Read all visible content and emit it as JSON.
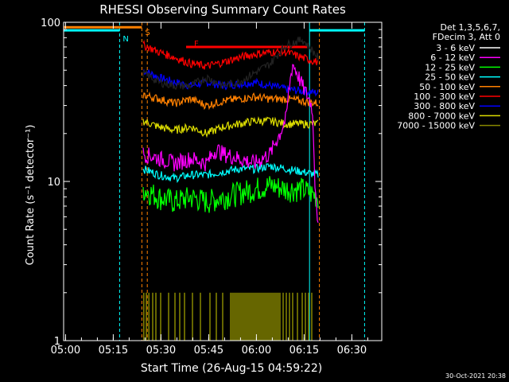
{
  "chart_data": {
    "type": "line",
    "title": "RHESSI Observing Summary Count Rates",
    "xlabel": "Start Time (26-Aug-15 04:59:22)",
    "ylabel": "Count Rate (s⁻¹ detector⁻¹)",
    "y_scale": "log",
    "ylim": [
      1,
      100
    ],
    "xlim_minutes": [
      0,
      100
    ],
    "x_tick_labels": [
      "05:00",
      "05:15",
      "05:30",
      "05:45",
      "06:00",
      "06:15",
      "06:30"
    ],
    "y_tick_labels": [
      "1",
      "10",
      "100"
    ],
    "legend_header": [
      "Det 1,3,5,6,7,",
      "FDecim 3, Att 0"
    ],
    "legend_position": "right",
    "footer_date": "30-Oct-2021 20:38",
    "series": [
      {
        "name": "3 - 6 keV",
        "color": "#000000",
        "x": [
          25,
          30,
          35,
          40,
          45,
          50,
          55,
          60,
          65,
          70,
          75,
          80
        ],
        "values": [
          48,
          42,
          40,
          40,
          45,
          40,
          42,
          48,
          55,
          72,
          78,
          60
        ]
      },
      {
        "name": "6 - 12 keV",
        "color": "#ff00ff",
        "x": [
          25,
          30,
          35,
          40,
          45,
          48,
          50,
          55,
          60,
          65,
          68,
          70,
          72,
          75,
          78,
          79,
          80
        ],
        "values": [
          15,
          14,
          13,
          14,
          13,
          16,
          15,
          14,
          13,
          15,
          20,
          25,
          55,
          40,
          30,
          10,
          5
        ]
      },
      {
        "name": "12 - 25 keV",
        "color": "#00ff00",
        "x": [
          25,
          30,
          35,
          40,
          45,
          50,
          55,
          60,
          65,
          70,
          75,
          80
        ],
        "values": [
          9,
          8,
          7.5,
          8,
          7.5,
          8,
          8.5,
          9,
          9.5,
          9,
          9,
          8
        ]
      },
      {
        "name": "25 - 50 keV",
        "color": "#00ffff",
        "x": [
          25,
          30,
          35,
          40,
          45,
          50,
          55,
          60,
          65,
          70,
          75,
          80
        ],
        "values": [
          12,
          11,
          10.5,
          11,
          11,
          11.5,
          12,
          12,
          12.5,
          12,
          11.5,
          11
        ]
      },
      {
        "name": "50 - 100 keV",
        "color": "#ff8000",
        "x": [
          25,
          30,
          35,
          40,
          45,
          50,
          55,
          60,
          65,
          70,
          75,
          80
        ],
        "values": [
          35,
          33,
          31,
          33,
          30,
          32,
          33,
          34,
          33,
          33,
          32,
          31
        ]
      },
      {
        "name": "100 - 300 keV",
        "color": "#ff0000",
        "x": [
          25,
          30,
          35,
          40,
          45,
          50,
          55,
          60,
          65,
          70,
          75,
          80
        ],
        "values": [
          72,
          65,
          60,
          55,
          53,
          56,
          60,
          63,
          65,
          65,
          60,
          56
        ]
      },
      {
        "name": "300 - 800 keV",
        "color": "#0000ff",
        "x": [
          25,
          30,
          35,
          40,
          45,
          50,
          55,
          60,
          65,
          70,
          75,
          80
        ],
        "values": [
          50,
          45,
          42,
          40,
          42,
          40,
          41,
          42,
          40,
          38,
          37,
          36
        ]
      },
      {
        "name": "800 - 7000 keV",
        "color": "#dddd00",
        "x": [
          25,
          30,
          35,
          40,
          45,
          50,
          55,
          60,
          65,
          70,
          75,
          80
        ],
        "values": [
          24,
          22,
          21,
          22,
          20,
          22,
          23,
          24,
          24,
          23,
          23,
          23
        ]
      },
      {
        "name": "7000 - 15000 keV",
        "color": "#888800",
        "x": [],
        "values": []
      }
    ],
    "spikes_7000_15000_x": [
      25.2,
      26,
      26.8,
      28,
      29,
      30.5,
      33,
      35,
      36.5,
      38,
      40.5,
      43,
      46,
      48,
      50,
      52.5,
      53,
      53.5,
      54,
      54.5,
      55,
      55.5,
      56,
      56.5,
      57,
      57.5,
      58,
      58.5,
      59,
      59.5,
      60,
      60.5,
      61,
      61.5,
      62,
      62.5,
      63,
      63.5,
      64,
      64.5,
      65,
      65.5,
      66,
      66.5,
      67,
      67.5,
      68,
      69,
      70,
      71,
      72,
      73.5,
      75,
      76,
      77,
      78
    ],
    "spikes_7000_15000_top": 2,
    "markers": [
      {
        "label": "N",
        "color": "#00ffff",
        "x": 17.6
      },
      {
        "label": "S",
        "color": "#ff8000",
        "x": 24.6
      },
      {
        "label": "F",
        "color": "#ff0000",
        "x": 40
      }
    ],
    "flag_bars": [
      {
        "color": "#ff8000",
        "x": [
          0,
          24.6
        ],
        "y": 93
      },
      {
        "color": "#00ffff",
        "x": [
          0,
          17.6
        ],
        "y": 89
      },
      {
        "color": "#00ffff",
        "x": [
          77.3,
          94.6
        ],
        "y": 89
      },
      {
        "color": "#ff0000",
        "x": [
          38.5,
          76.5
        ],
        "y": 70
      }
    ],
    "vertical_lines": [
      {
        "color": "#00ffff",
        "x": 0,
        "style": "solid"
      },
      {
        "color": "#00ffff",
        "x": 17.6,
        "style": "dashed"
      },
      {
        "color": "#ff8000",
        "x": 24.6,
        "style": "dashed"
      },
      {
        "color": "#ff8000",
        "x": 26.3,
        "style": "dashed"
      },
      {
        "color": "#00ffff",
        "x": 77.3,
        "style": "solid"
      },
      {
        "color": "#ff8000",
        "x": 80.4,
        "style": "dashed"
      },
      {
        "color": "#00ffff",
        "x": 94.6,
        "style": "dashed"
      }
    ]
  }
}
